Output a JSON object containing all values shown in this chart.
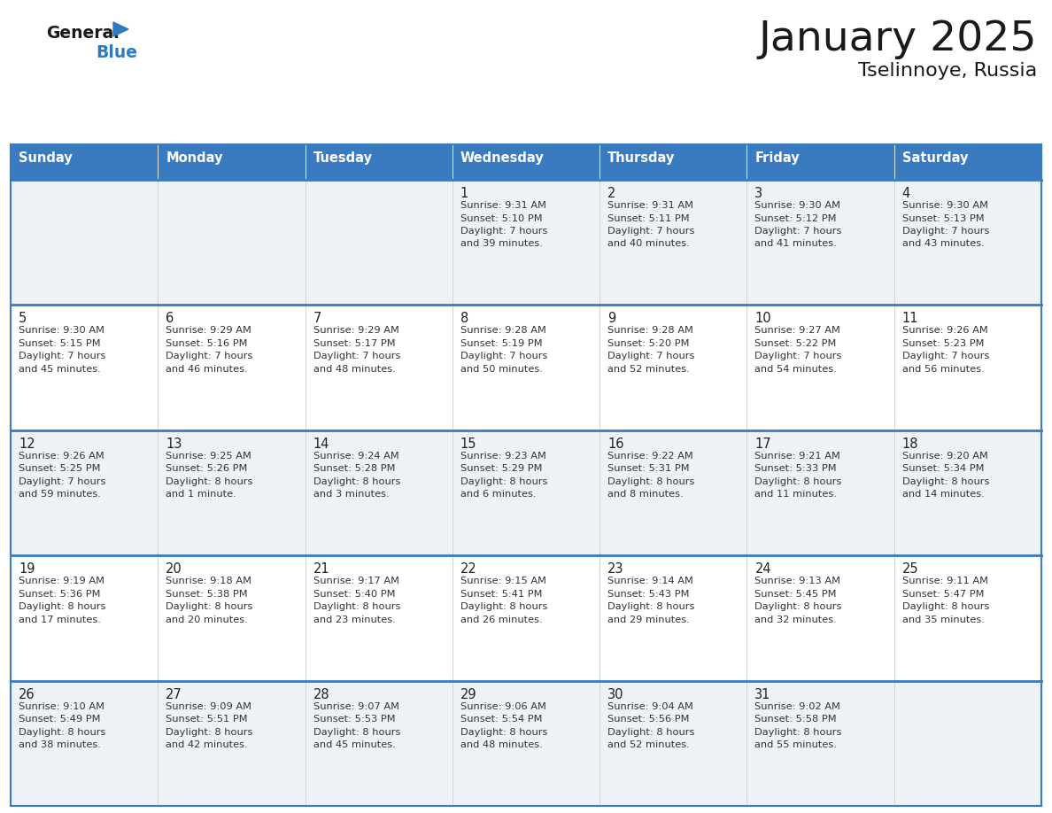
{
  "title": "January 2025",
  "subtitle": "Tselinnoye, Russia",
  "header_bg": "#3a7abf",
  "header_text_color": "#ffffff",
  "row_bg_odd": "#eef2f7",
  "row_bg_even": "#ffffff",
  "border_color": "#3a7abf",
  "cell_border_color": "#cccccc",
  "text_color": "#333333",
  "day_num_color": "#222222",
  "days_of_week": [
    "Sunday",
    "Monday",
    "Tuesday",
    "Wednesday",
    "Thursday",
    "Friday",
    "Saturday"
  ],
  "weeks": [
    [
      {
        "day": "",
        "info": ""
      },
      {
        "day": "",
        "info": ""
      },
      {
        "day": "",
        "info": ""
      },
      {
        "day": "1",
        "info": "Sunrise: 9:31 AM\nSunset: 5:10 PM\nDaylight: 7 hours\nand 39 minutes."
      },
      {
        "day": "2",
        "info": "Sunrise: 9:31 AM\nSunset: 5:11 PM\nDaylight: 7 hours\nand 40 minutes."
      },
      {
        "day": "3",
        "info": "Sunrise: 9:30 AM\nSunset: 5:12 PM\nDaylight: 7 hours\nand 41 minutes."
      },
      {
        "day": "4",
        "info": "Sunrise: 9:30 AM\nSunset: 5:13 PM\nDaylight: 7 hours\nand 43 minutes."
      }
    ],
    [
      {
        "day": "5",
        "info": "Sunrise: 9:30 AM\nSunset: 5:15 PM\nDaylight: 7 hours\nand 45 minutes."
      },
      {
        "day": "6",
        "info": "Sunrise: 9:29 AM\nSunset: 5:16 PM\nDaylight: 7 hours\nand 46 minutes."
      },
      {
        "day": "7",
        "info": "Sunrise: 9:29 AM\nSunset: 5:17 PM\nDaylight: 7 hours\nand 48 minutes."
      },
      {
        "day": "8",
        "info": "Sunrise: 9:28 AM\nSunset: 5:19 PM\nDaylight: 7 hours\nand 50 minutes."
      },
      {
        "day": "9",
        "info": "Sunrise: 9:28 AM\nSunset: 5:20 PM\nDaylight: 7 hours\nand 52 minutes."
      },
      {
        "day": "10",
        "info": "Sunrise: 9:27 AM\nSunset: 5:22 PM\nDaylight: 7 hours\nand 54 minutes."
      },
      {
        "day": "11",
        "info": "Sunrise: 9:26 AM\nSunset: 5:23 PM\nDaylight: 7 hours\nand 56 minutes."
      }
    ],
    [
      {
        "day": "12",
        "info": "Sunrise: 9:26 AM\nSunset: 5:25 PM\nDaylight: 7 hours\nand 59 minutes."
      },
      {
        "day": "13",
        "info": "Sunrise: 9:25 AM\nSunset: 5:26 PM\nDaylight: 8 hours\nand 1 minute."
      },
      {
        "day": "14",
        "info": "Sunrise: 9:24 AM\nSunset: 5:28 PM\nDaylight: 8 hours\nand 3 minutes."
      },
      {
        "day": "15",
        "info": "Sunrise: 9:23 AM\nSunset: 5:29 PM\nDaylight: 8 hours\nand 6 minutes."
      },
      {
        "day": "16",
        "info": "Sunrise: 9:22 AM\nSunset: 5:31 PM\nDaylight: 8 hours\nand 8 minutes."
      },
      {
        "day": "17",
        "info": "Sunrise: 9:21 AM\nSunset: 5:33 PM\nDaylight: 8 hours\nand 11 minutes."
      },
      {
        "day": "18",
        "info": "Sunrise: 9:20 AM\nSunset: 5:34 PM\nDaylight: 8 hours\nand 14 minutes."
      }
    ],
    [
      {
        "day": "19",
        "info": "Sunrise: 9:19 AM\nSunset: 5:36 PM\nDaylight: 8 hours\nand 17 minutes."
      },
      {
        "day": "20",
        "info": "Sunrise: 9:18 AM\nSunset: 5:38 PM\nDaylight: 8 hours\nand 20 minutes."
      },
      {
        "day": "21",
        "info": "Sunrise: 9:17 AM\nSunset: 5:40 PM\nDaylight: 8 hours\nand 23 minutes."
      },
      {
        "day": "22",
        "info": "Sunrise: 9:15 AM\nSunset: 5:41 PM\nDaylight: 8 hours\nand 26 minutes."
      },
      {
        "day": "23",
        "info": "Sunrise: 9:14 AM\nSunset: 5:43 PM\nDaylight: 8 hours\nand 29 minutes."
      },
      {
        "day": "24",
        "info": "Sunrise: 9:13 AM\nSunset: 5:45 PM\nDaylight: 8 hours\nand 32 minutes."
      },
      {
        "day": "25",
        "info": "Sunrise: 9:11 AM\nSunset: 5:47 PM\nDaylight: 8 hours\nand 35 minutes."
      }
    ],
    [
      {
        "day": "26",
        "info": "Sunrise: 9:10 AM\nSunset: 5:49 PM\nDaylight: 8 hours\nand 38 minutes."
      },
      {
        "day": "27",
        "info": "Sunrise: 9:09 AM\nSunset: 5:51 PM\nDaylight: 8 hours\nand 42 minutes."
      },
      {
        "day": "28",
        "info": "Sunrise: 9:07 AM\nSunset: 5:53 PM\nDaylight: 8 hours\nand 45 minutes."
      },
      {
        "day": "29",
        "info": "Sunrise: 9:06 AM\nSunset: 5:54 PM\nDaylight: 8 hours\nand 48 minutes."
      },
      {
        "day": "30",
        "info": "Sunrise: 9:04 AM\nSunset: 5:56 PM\nDaylight: 8 hours\nand 52 minutes."
      },
      {
        "day": "31",
        "info": "Sunrise: 9:02 AM\nSunset: 5:58 PM\nDaylight: 8 hours\nand 55 minutes."
      },
      {
        "day": "",
        "info": ""
      }
    ]
  ],
  "logo_general_color": "#1a1a1a",
  "logo_blue_color": "#2e7bbf",
  "logo_triangle_color": "#2e7bbf",
  "figwidth": 11.88,
  "figheight": 9.18,
  "dpi": 100
}
